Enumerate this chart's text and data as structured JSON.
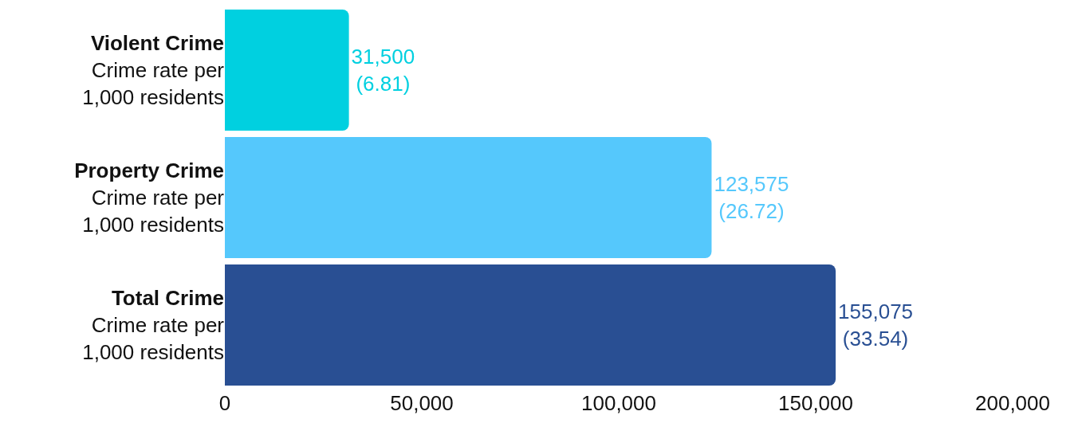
{
  "chart_data": {
    "type": "bar",
    "orientation": "horizontal",
    "categories": [
      "Violent Crime\nCrime rate per\n1,000 residents",
      "Property Crime\nCrime rate per\n1,000 residents",
      "Total Crime\nCrime rate per\n1,000 residents"
    ],
    "values": [
      31500,
      123575,
      155075
    ],
    "colors": [
      "#00d0e0",
      "#55c8fc",
      "#294f93"
    ],
    "value_labels": [
      "31,500\n(6.81)",
      "123,575\n(26.72)",
      "155,075\n(33.54)"
    ],
    "xlim": [
      0,
      200000
    ],
    "xticks": [
      {
        "value": 0,
        "label": "0"
      },
      {
        "value": 50000,
        "label": "50,000"
      },
      {
        "value": 100000,
        "label": "100,000"
      },
      {
        "value": 150000,
        "label": "150,000"
      },
      {
        "value": 200000,
        "label": "200,000"
      }
    ]
  }
}
